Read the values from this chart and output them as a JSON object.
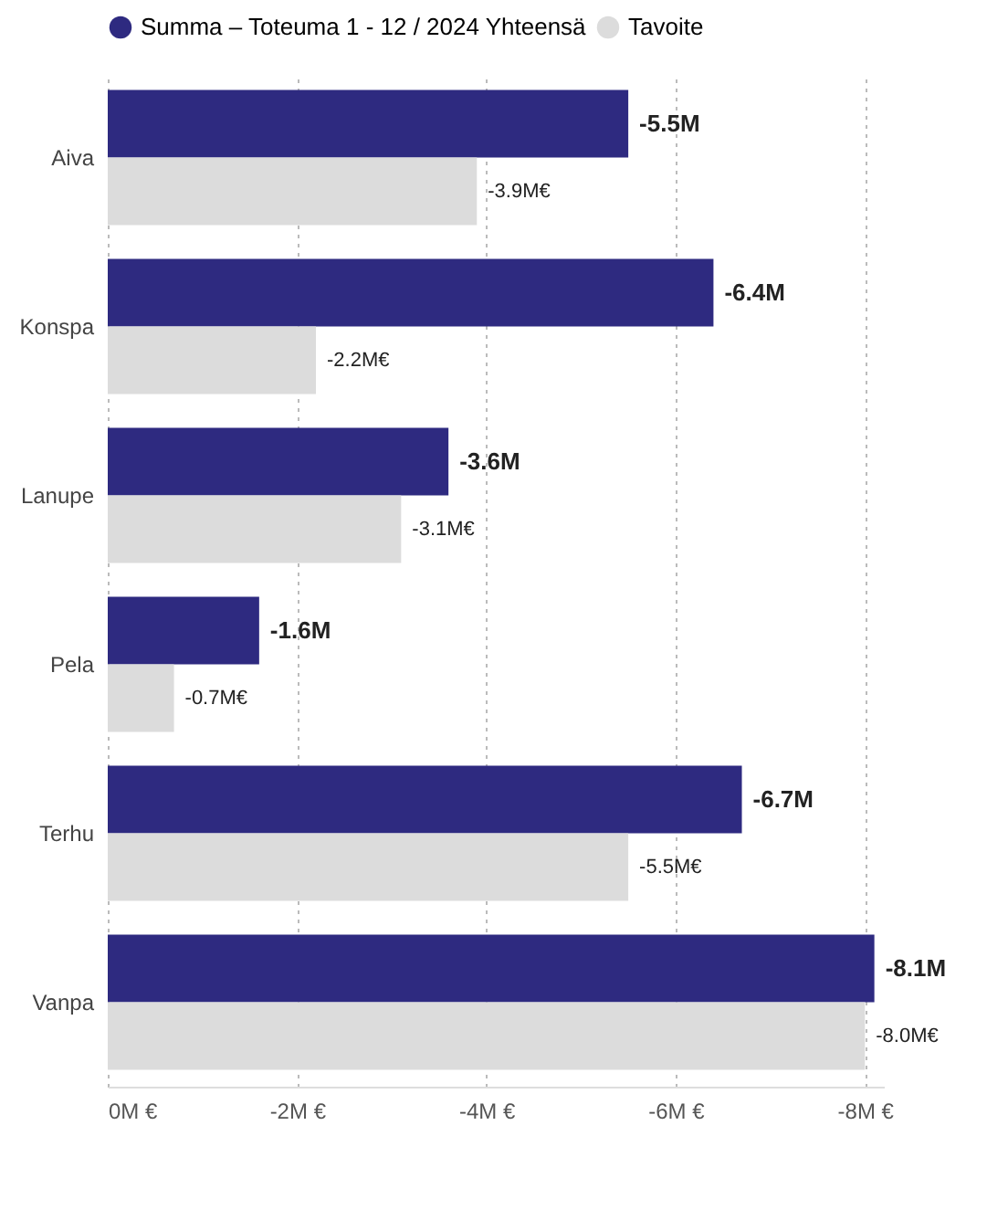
{
  "chart_data": {
    "type": "bar",
    "orientation": "horizontal",
    "categories": [
      "Aiva",
      "Konspa",
      "Lanupe",
      "Pela",
      "Terhu",
      "Vanpa"
    ],
    "series": [
      {
        "name": "Summa – Toteuma 1 - 12 / 2024 Yhteensä",
        "color": "#2e2a80",
        "values": [
          -5.5,
          -6.4,
          -3.6,
          -1.6,
          -6.7,
          -8.1
        ],
        "value_labels": [
          "-5.5M",
          "-6.4M",
          "-3.6M",
          "-1.6M",
          "-6.7M",
          "-8.1M"
        ]
      },
      {
        "name": "Tavoite",
        "color": "#dcdcdc",
        "values": [
          -3.9,
          -2.2,
          -3.1,
          -0.7,
          -5.5,
          -8.0
        ],
        "value_labels": [
          "-3.9M€",
          "-2.2M€",
          "-3.1M€",
          "-0.7M€",
          "-5.5M€",
          "-8.0M€"
        ]
      }
    ],
    "xlim": [
      0,
      -8.2
    ],
    "xticks": [
      {
        "value": 0,
        "label": "0M €"
      },
      {
        "value": -2,
        "label": "-2M €"
      },
      {
        "value": -4,
        "label": "-4M €"
      },
      {
        "value": -6,
        "label": "-6M €"
      },
      {
        "value": -8,
        "label": "-8M €"
      }
    ],
    "grid": "x",
    "legend": "top"
  }
}
